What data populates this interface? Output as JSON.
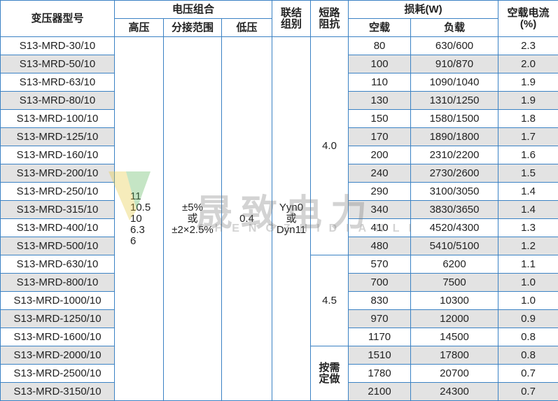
{
  "table": {
    "header": {
      "model": "变压器型号",
      "voltage_group": "电压组合",
      "hv": "高压",
      "tap": "分接范围",
      "lv": "低压",
      "connection": [
        "联结",
        "组别"
      ],
      "impedance": [
        "短路",
        "阻抗"
      ],
      "loss": "损耗(W)",
      "noload": "空载",
      "load": "负载",
      "current": [
        "空载电流",
        "(%)"
      ]
    },
    "rows": [
      [
        "S13-MRD-30/10",
        "80",
        "630/600",
        "2.3"
      ],
      [
        "S13-MRD-50/10",
        "100",
        "910/870",
        "2.0"
      ],
      [
        "S13-MRD-63/10",
        "110",
        "1090/1040",
        "1.9"
      ],
      [
        "S13-MRD-80/10",
        "130",
        "1310/1250",
        "1.9"
      ],
      [
        "S13-MRD-100/10",
        "150",
        "1580/1500",
        "1.8"
      ],
      [
        "S13-MRD-125/10",
        "170",
        "1890/1800",
        "1.7"
      ],
      [
        "S13-MRD-160/10",
        "200",
        "2310/2200",
        "1.6"
      ],
      [
        "S13-MRD-200/10",
        "240",
        "2730/2600",
        "1.5"
      ],
      [
        "S13-MRD-250/10",
        "290",
        "3100/3050",
        "1.4"
      ],
      [
        "S13-MRD-315/10",
        "340",
        "3830/3650",
        "1.4"
      ],
      [
        "S13-MRD-400/10",
        "410",
        "4520/4300",
        "1.3"
      ],
      [
        "S13-MRD-500/10",
        "480",
        "5410/5100",
        "1.2"
      ],
      [
        "S13-MRD-630/10",
        "570",
        "6200",
        "1.1"
      ],
      [
        "S13-MRD-800/10",
        "700",
        "7500",
        "1.0"
      ],
      [
        "S13-MRD-1000/10",
        "830",
        "10300",
        "1.0"
      ],
      [
        "S13-MRD-1250/10",
        "970",
        "12000",
        "0.9"
      ],
      [
        "S13-MRD-1600/10",
        "1170",
        "14500",
        "0.8"
      ],
      [
        "S13-MRD-2000/10",
        "1510",
        "17800",
        "0.8"
      ],
      [
        "S13-MRD-2500/10",
        "1780",
        "20700",
        "0.7"
      ],
      [
        "S13-MRD-3150/10",
        "2100",
        "24300",
        "0.7"
      ]
    ],
    "hv": [
      "11",
      "10.5",
      "10",
      "6.3",
      "6"
    ],
    "tap": [
      "±5%",
      "或",
      "±2×2.5%"
    ],
    "lv": "0.4",
    "connection": [
      "Yyn0",
      "或",
      "Dyn11"
    ],
    "impedance": [
      "4.0",
      "4.5",
      [
        "按需",
        "定做"
      ]
    ],
    "watermark": {
      "brand": "晟致电力",
      "pinyin": "SHENGZHIDIANLI"
    }
  }
}
